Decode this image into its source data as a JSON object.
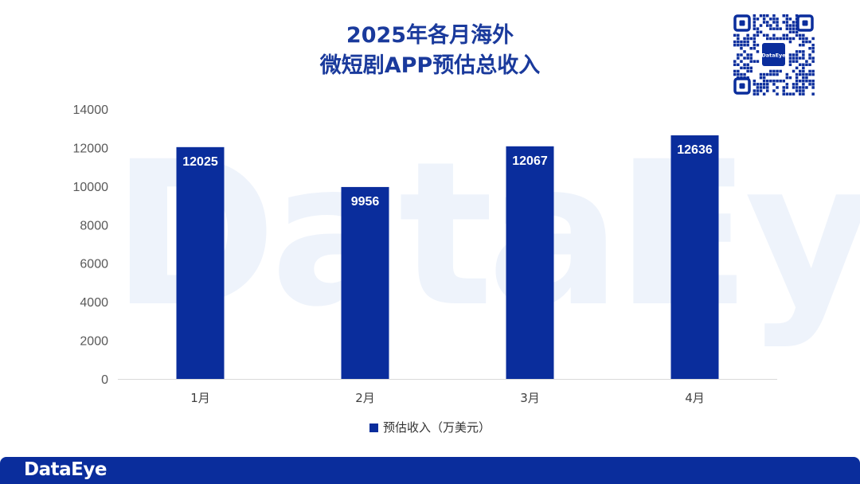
{
  "brand": {
    "watermark": "DataEye",
    "footer_logo": "DataEye",
    "qr_label": "DataEye",
    "primary_color": "#0a2d9c"
  },
  "chart_data": {
    "type": "bar",
    "title": [
      "2025年各月海外",
      "微短剧APP预估总收入"
    ],
    "categories": [
      "1月",
      "2月",
      "3月",
      "4月"
    ],
    "series": [
      {
        "name": "预估收入（万美元）",
        "values": [
          12025,
          9956,
          12067,
          12636
        ],
        "color": "#0a2d9c"
      }
    ],
    "ylim": [
      0,
      14000
    ],
    "yticks": [
      0,
      2000,
      4000,
      6000,
      8000,
      10000,
      12000,
      14000
    ],
    "grid": false,
    "legend": "bottom",
    "data_labels": "inside-top"
  }
}
